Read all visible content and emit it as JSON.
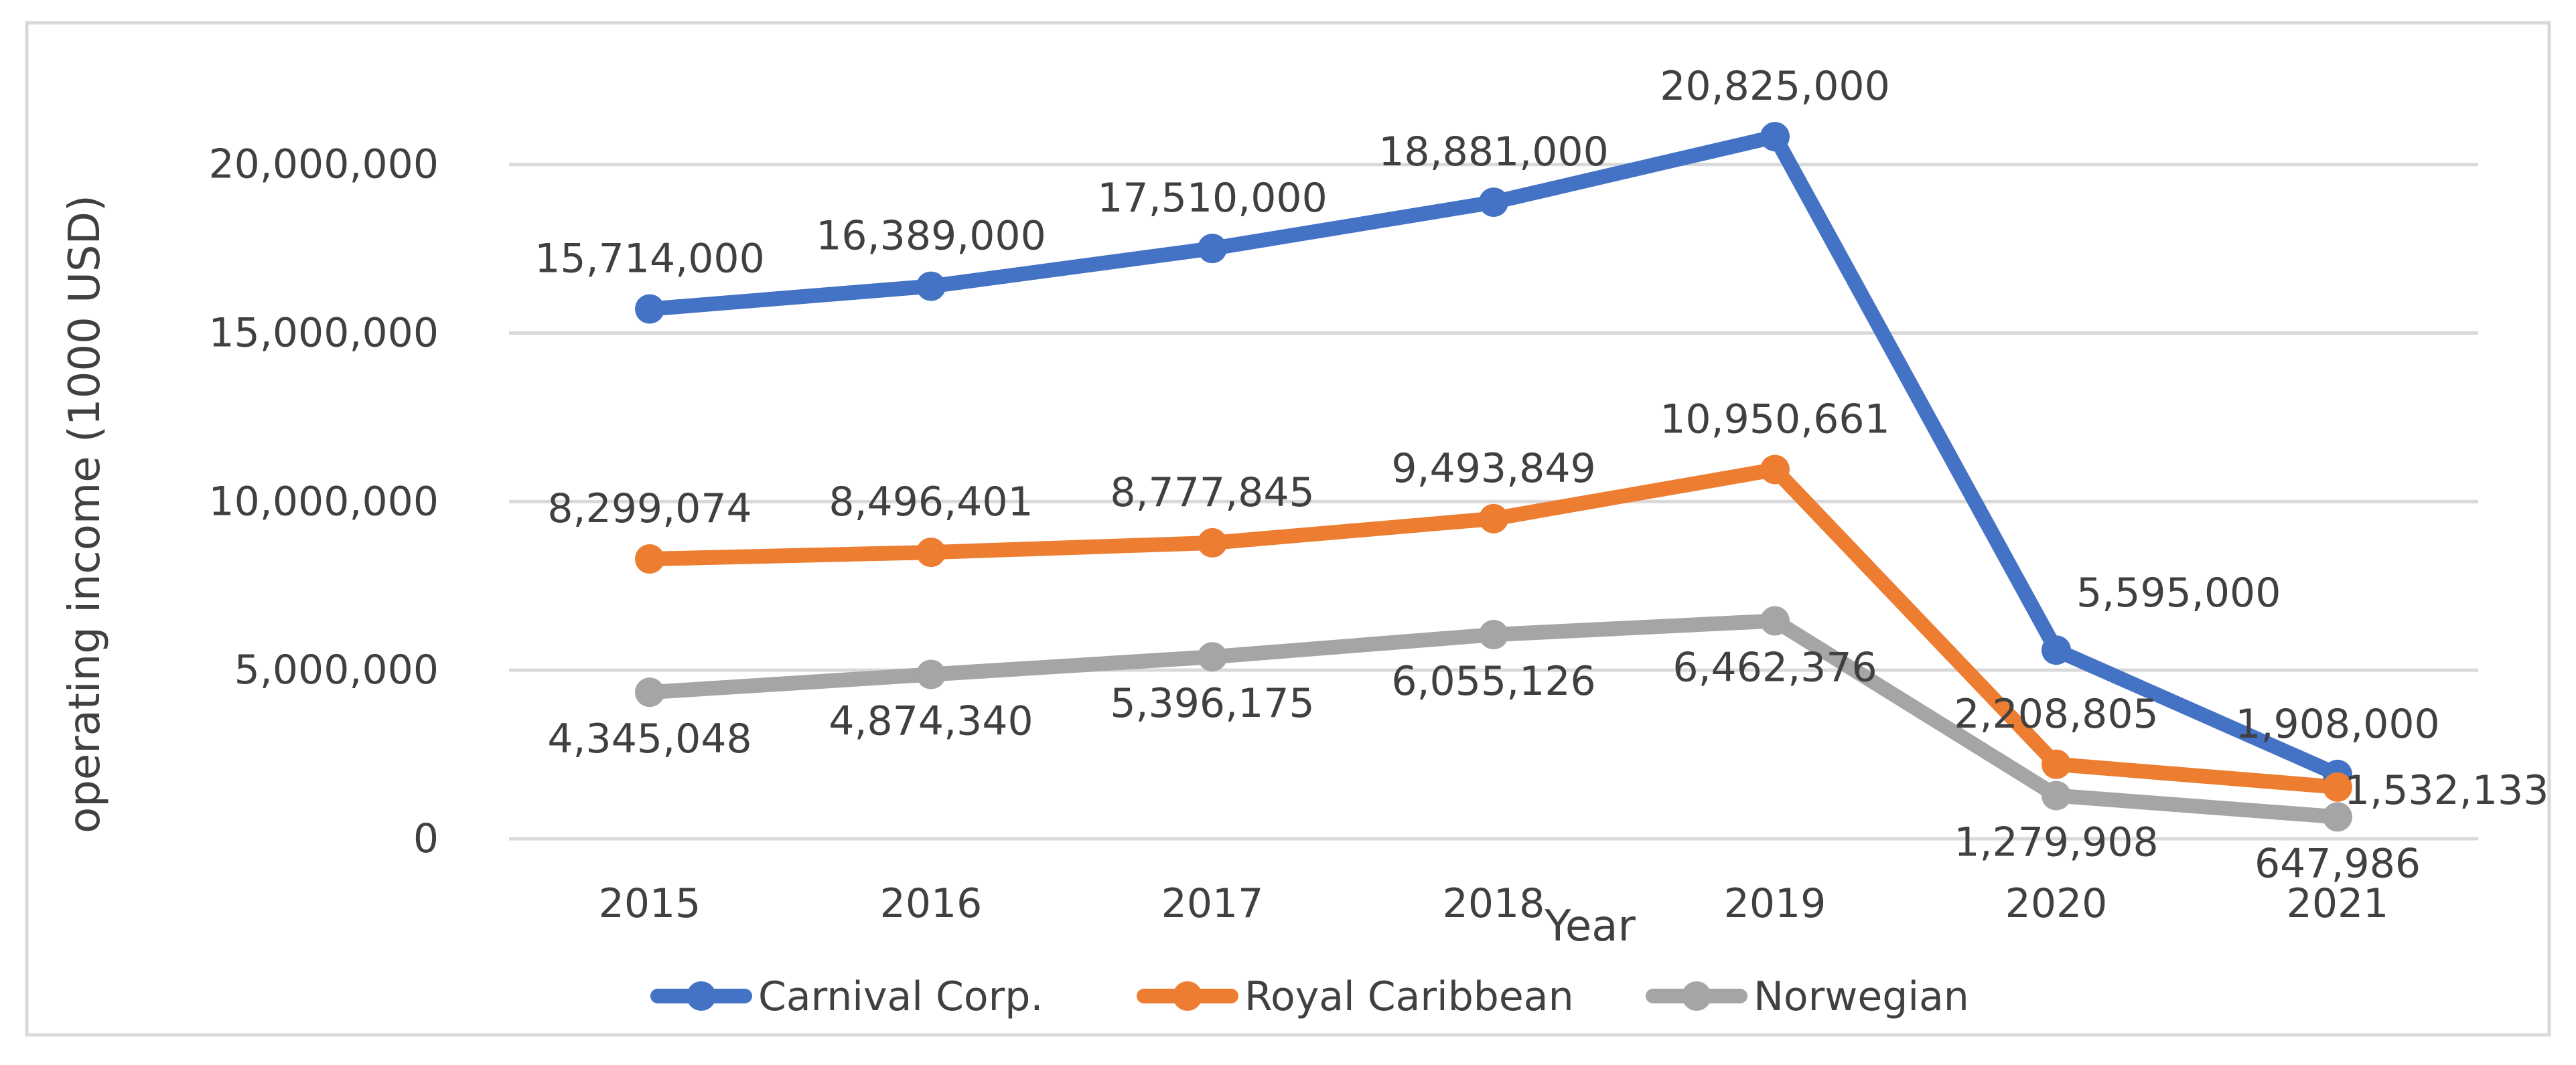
{
  "chart_data": {
    "type": "line",
    "title": "",
    "xlabel": "Year",
    "ylabel": "operating income (1000 USD)",
    "categories": [
      "2015",
      "2016",
      "2017",
      "2018",
      "2019",
      "2020",
      "2021"
    ],
    "ylim": [
      0,
      22000000
    ],
    "yticks": [
      0,
      5000000,
      10000000,
      15000000,
      20000000
    ],
    "ytick_labels": [
      "0",
      "5,000,000",
      "10,000,000",
      "15,000,000",
      "20,000,000"
    ],
    "grid": true,
    "legend_position": "bottom",
    "series": [
      {
        "name": "Carnival Corp.",
        "color": "#4472c4",
        "values": [
          15714000,
          16389000,
          17510000,
          18881000,
          20825000,
          5595000,
          1908000
        ],
        "labels": [
          "15,714,000",
          "16,389,000",
          "17,510,000",
          "18,881,000",
          "20,825,000",
          "5,595,000",
          "1,908,000"
        ],
        "label_placement": [
          "above",
          "above",
          "above",
          "above",
          "above",
          "above-right",
          "above"
        ]
      },
      {
        "name": "Royal Caribbean",
        "color": "#ed7d31",
        "values": [
          8299074,
          8496401,
          8777845,
          9493849,
          10950661,
          2208805,
          1532133
        ],
        "labels": [
          "8,299,074",
          "8,496,401",
          "8,777,845",
          "9,493,849",
          "10,950,661",
          "2,208,805",
          "1,532,133"
        ],
        "label_placement": [
          "above",
          "above",
          "above",
          "above",
          "above",
          "above",
          "right"
        ]
      },
      {
        "name": "Norwegian",
        "color": "#a5a5a5",
        "values": [
          4345048,
          4874340,
          5396175,
          6055126,
          6462376,
          1279908,
          647986
        ],
        "labels": [
          "4,345,048",
          "4,874,340",
          "5,396,175",
          "6,055,126",
          "6,462,376",
          "1,279,908",
          "647,986"
        ],
        "label_placement": [
          "below",
          "below",
          "below",
          "below",
          "below",
          "below",
          "below"
        ]
      }
    ]
  }
}
